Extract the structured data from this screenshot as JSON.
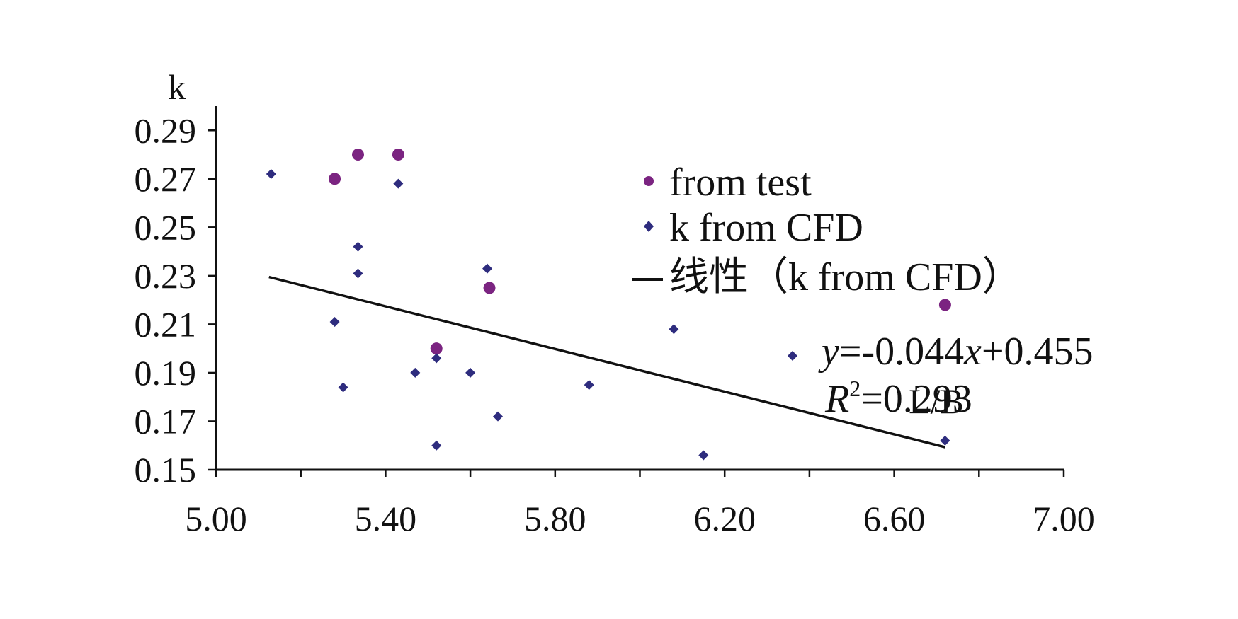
{
  "chart_data": {
    "type": "scatter",
    "title": "",
    "xlabel": "L/B",
    "ylabel": "k",
    "xlim": [
      5.0,
      7.0
    ],
    "ylim": [
      0.15,
      0.3
    ],
    "x_ticks": [
      "5.00",
      "5.40",
      "5.80",
      "6.20",
      "6.60",
      "7.00"
    ],
    "x_tick_values": [
      5.0,
      5.4,
      5.8,
      6.2,
      6.6,
      7.0
    ],
    "y_ticks": [
      "0.15",
      "0.17",
      "0.19",
      "0.21",
      "0.23",
      "0.25",
      "0.27",
      "0.29"
    ],
    "y_tick_values": [
      0.15,
      0.17,
      0.19,
      0.21,
      0.23,
      0.25,
      0.27,
      0.29
    ],
    "grid": false,
    "legend_position": "top-right",
    "series": [
      {
        "name": "from test",
        "marker": "circle",
        "color": "#7B2481",
        "points": [
          {
            "x": 5.28,
            "y": 0.27
          },
          {
            "x": 5.335,
            "y": 0.28
          },
          {
            "x": 5.43,
            "y": 0.28
          },
          {
            "x": 5.645,
            "y": 0.225
          },
          {
            "x": 5.52,
            "y": 0.2
          },
          {
            "x": 6.72,
            "y": 0.218
          }
        ]
      },
      {
        "name": "k from CFD",
        "marker": "diamond",
        "color": "#2E2C7E",
        "points": [
          {
            "x": 5.13,
            "y": 0.272
          },
          {
            "x": 5.43,
            "y": 0.268
          },
          {
            "x": 5.335,
            "y": 0.242
          },
          {
            "x": 5.335,
            "y": 0.231
          },
          {
            "x": 5.64,
            "y": 0.233
          },
          {
            "x": 5.28,
            "y": 0.211
          },
          {
            "x": 5.3,
            "y": 0.184
          },
          {
            "x": 5.52,
            "y": 0.196
          },
          {
            "x": 5.47,
            "y": 0.19
          },
          {
            "x": 5.6,
            "y": 0.19
          },
          {
            "x": 5.665,
            "y": 0.172
          },
          {
            "x": 5.52,
            "y": 0.16
          },
          {
            "x": 5.88,
            "y": 0.185
          },
          {
            "x": 6.08,
            "y": 0.208
          },
          {
            "x": 6.15,
            "y": 0.156
          },
          {
            "x": 6.36,
            "y": 0.197
          },
          {
            "x": 6.72,
            "y": 0.162
          }
        ]
      }
    ],
    "trendline": {
      "legend_label": "线性（k from CFD）",
      "slope": -0.044,
      "intercept": 0.455,
      "x_range": [
        5.125,
        6.72
      ],
      "color": "#111111",
      "equation_y": "y",
      "equation_mid": "=-0.044",
      "equation_x": "x",
      "equation_tail": "+0.455",
      "r2_label": "R",
      "r2_sup": "2",
      "r2_value": "=0.293"
    }
  }
}
